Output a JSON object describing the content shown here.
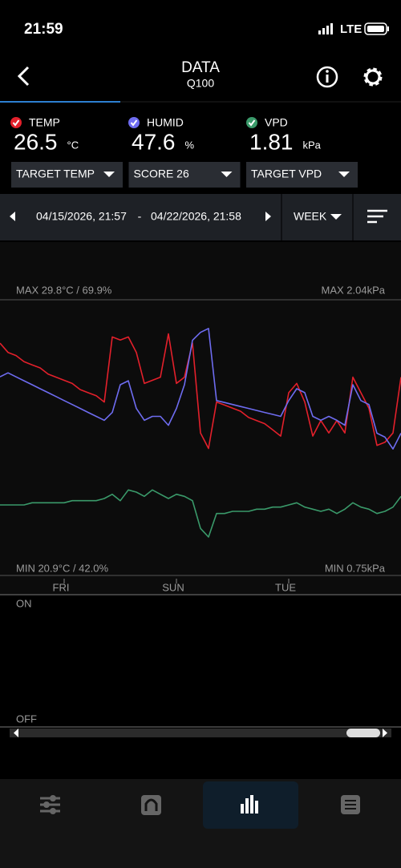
{
  "status_bar": {
    "time": "21:59",
    "network": "LTE"
  },
  "header": {
    "title": "DATA",
    "subtitle": "Q100"
  },
  "readings": [
    {
      "label": "TEMP",
      "value": "26.5",
      "unit": "°C",
      "color": "#e3202b"
    },
    {
      "label": "HUMID",
      "value": "47.6",
      "unit": "%",
      "color": "#6e6cf0"
    },
    {
      "label": "VPD",
      "value": "1.81",
      "unit": "kPa",
      "color": "#3a9a6a"
    }
  ],
  "dropdowns": [
    "TARGET TEMP",
    "SCORE 26",
    "TARGET VPD"
  ],
  "range": {
    "start": "04/15/2026, 21:57",
    "separator": "-",
    "end": "04/22/2026, 21:58",
    "period": "WEEK"
  },
  "chart_data": {
    "type": "line",
    "max_left": "MAX 29.8°C / 69.9%",
    "max_right": "MAX 2.04kPa",
    "min_left": "MIN 20.9°C / 42.0%",
    "min_right": "MIN 0.75kPa",
    "categories": [
      null,
      null,
      null,
      null,
      null,
      null,
      null,
      null,
      "FRI",
      null,
      null,
      null,
      null,
      null,
      null,
      null,
      null,
      null,
      null,
      null,
      null,
      null,
      "SUN",
      null,
      null,
      null,
      null,
      null,
      null,
      null,
      null,
      null,
      null,
      null,
      null,
      null,
      "TUE",
      null,
      null,
      null,
      null,
      null,
      null,
      null,
      null,
      null,
      null,
      null,
      null,
      null,
      null
    ],
    "series": [
      {
        "color": "#e3202b",
        "ylim": [
          20.9,
          29.8
        ],
        "values": [
          28.4,
          28.1,
          28.0,
          27.8,
          27.7,
          27.6,
          27.4,
          27.3,
          27.2,
          27.1,
          26.9,
          26.8,
          26.7,
          26.5,
          28.6,
          28.5,
          28.6,
          28.1,
          27.1,
          27.2,
          27.3,
          28.7,
          27.1,
          27.3,
          28.4,
          25.5,
          25.0,
          26.5,
          26.4,
          26.3,
          26.2,
          26.0,
          25.9,
          25.8,
          25.6,
          25.4,
          26.8,
          27.1,
          26.5,
          25.4,
          25.9,
          25.5,
          25.9,
          25.5,
          27.3,
          26.8,
          26.3,
          25.1,
          25.2,
          25.5,
          27.3
        ]
      },
      {
        "color": "#6e6cf0",
        "ylim": [
          42.0,
          69.9
        ],
        "values": [
          62.1,
          62.5,
          62.1,
          61.7,
          61.3,
          60.9,
          60.5,
          60.1,
          59.7,
          59.3,
          58.9,
          58.5,
          58.1,
          57.7,
          58.5,
          61.3,
          61.7,
          58.9,
          57.7,
          58.1,
          58.1,
          57.2,
          58.9,
          61.3,
          65.8,
          66.6,
          67.0,
          59.7,
          59.5,
          59.3,
          59.1,
          58.9,
          58.7,
          58.5,
          58.3,
          58.1,
          59.7,
          60.9,
          60.5,
          58.1,
          57.7,
          58.1,
          57.7,
          57.2,
          61.3,
          59.7,
          59.3,
          56.4,
          56.0,
          54.8,
          56.4
        ]
      },
      {
        "color": "#3a9a6a",
        "ylim": [
          0.75,
          2.04
        ],
        "values": [
          1.08,
          1.08,
          1.08,
          1.08,
          1.09,
          1.09,
          1.09,
          1.09,
          1.09,
          1.1,
          1.1,
          1.1,
          1.1,
          1.11,
          1.13,
          1.1,
          1.15,
          1.14,
          1.12,
          1.15,
          1.13,
          1.11,
          1.13,
          1.12,
          1.1,
          0.97,
          0.93,
          1.04,
          1.04,
          1.05,
          1.05,
          1.05,
          1.06,
          1.06,
          1.07,
          1.07,
          1.08,
          1.09,
          1.07,
          1.06,
          1.05,
          1.06,
          1.04,
          1.06,
          1.09,
          1.07,
          1.06,
          1.04,
          1.05,
          1.07,
          1.12
        ]
      }
    ]
  },
  "state_chart": {
    "on": "ON",
    "off": "OFF"
  }
}
